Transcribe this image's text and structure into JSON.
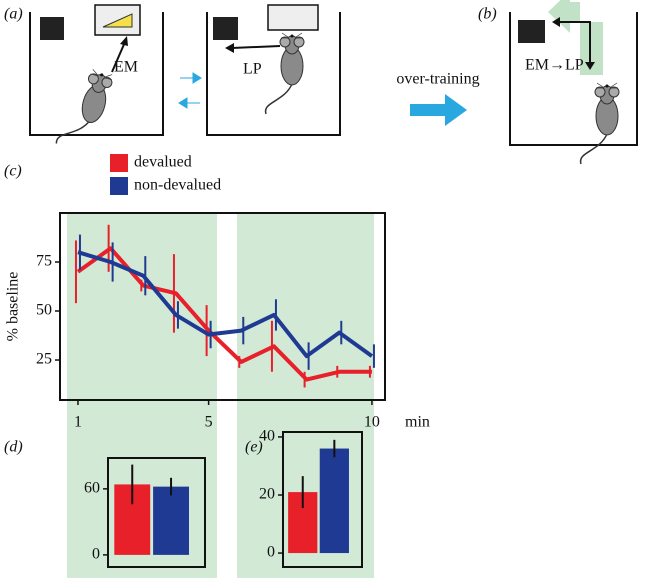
{
  "diagram": {
    "panel_labels": [
      "(a)",
      "(b)",
      "(c)",
      "(d)",
      "(e)"
    ],
    "em": "EM",
    "lp": "LP",
    "over_training": "over-training",
    "em_lp": "EM→LP"
  },
  "chart_data": [
    {
      "type": "line",
      "xlabel": "min",
      "ylabel": "% baseline",
      "x": [
        1,
        2,
        3,
        4,
        5,
        6,
        7,
        8,
        9,
        10
      ],
      "series": [
        {
          "name": "devalued",
          "color": "#e8202a",
          "values": [
            70,
            82,
            63,
            59,
            40,
            24,
            32,
            15,
            19,
            19
          ],
          "errors": [
            16,
            12,
            3,
            20,
            13,
            3,
            13,
            4,
            3,
            3
          ]
        },
        {
          "name": "non-devalued",
          "color": "#1f3a93",
          "values": [
            80,
            75,
            68,
            48,
            38,
            40,
            48,
            27,
            39,
            27
          ],
          "errors": [
            9,
            10,
            10,
            7,
            7,
            7,
            8,
            7,
            6,
            6
          ]
        }
      ],
      "xlim": [
        0.45,
        10.4
      ],
      "xticks": [
        1,
        5,
        10
      ],
      "ylim": [
        4.6,
        100
      ],
      "yticks": [
        25,
        50,
        75
      ]
    },
    {
      "type": "bar",
      "values": [
        64,
        62
      ],
      "errors": [
        18,
        8
      ],
      "colors": [
        "#e8202a",
        "#1f3a93"
      ],
      "ylim": [
        -11,
        88
      ],
      "yticks": [
        0,
        60
      ]
    },
    {
      "type": "bar",
      "values": [
        21,
        36
      ],
      "errors": [
        5.5,
        3
      ],
      "colors": [
        "#e8202a",
        "#1f3a93"
      ],
      "ylim": [
        -4.8,
        41.7
      ],
      "yticks": [
        0,
        20,
        40
      ]
    }
  ]
}
